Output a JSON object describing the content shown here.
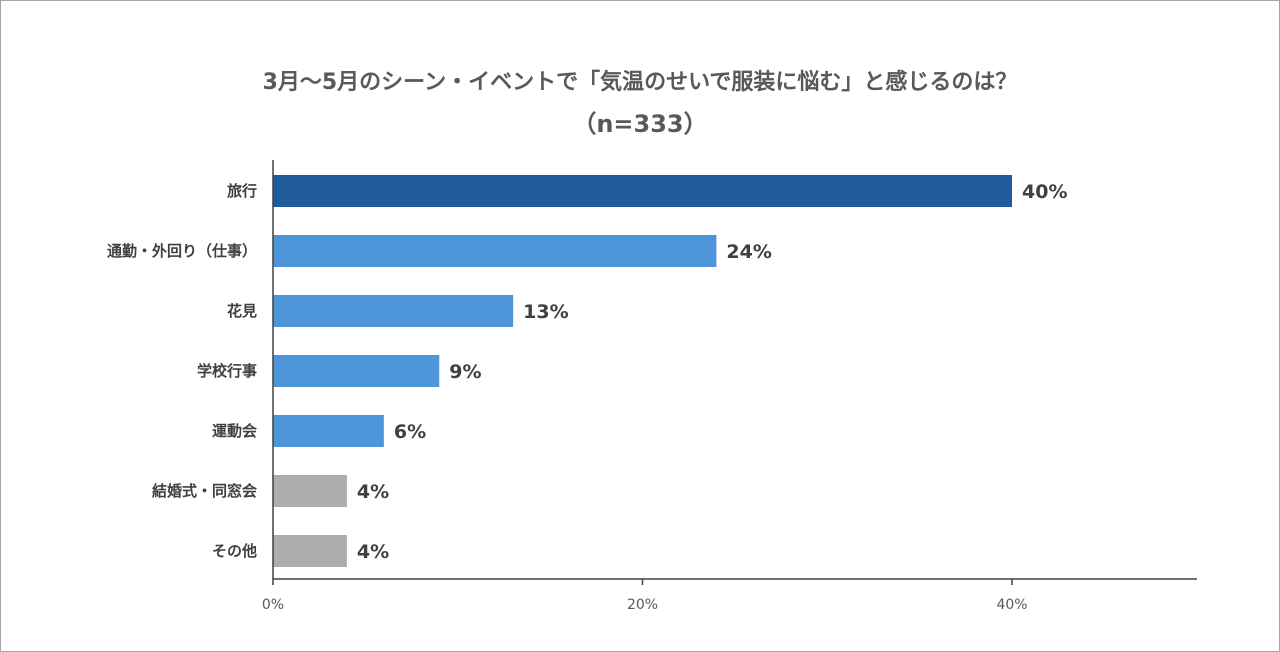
{
  "chart_data": {
    "type": "bar",
    "orientation": "horizontal",
    "title": "3月～5月のシーン・イベントで「気温のせいで服装に悩む」と感じるのは？",
    "subtitle": "（n=333）",
    "categories": [
      "旅行",
      "通勤・外回り（仕事）",
      "花見",
      "学校行事",
      "運動会",
      "結婚式・同窓会",
      "その他"
    ],
    "values": [
      40,
      24,
      13,
      9,
      6,
      4,
      4
    ],
    "value_labels": [
      "40%",
      "24%",
      "13%",
      "9%",
      "6%",
      "4%",
      "4%"
    ],
    "bar_colors": [
      "#1f5c99",
      "#4f95d9",
      "#4f95d9",
      "#4f95d9",
      "#4f95d9",
      "#adadad",
      "#adadad"
    ],
    "xlim": [
      0,
      50
    ],
    "xticks": [
      0,
      20,
      40
    ],
    "xtick_labels": [
      "0%",
      "20%",
      "40%"
    ],
    "grid": false,
    "legend": "none"
  }
}
